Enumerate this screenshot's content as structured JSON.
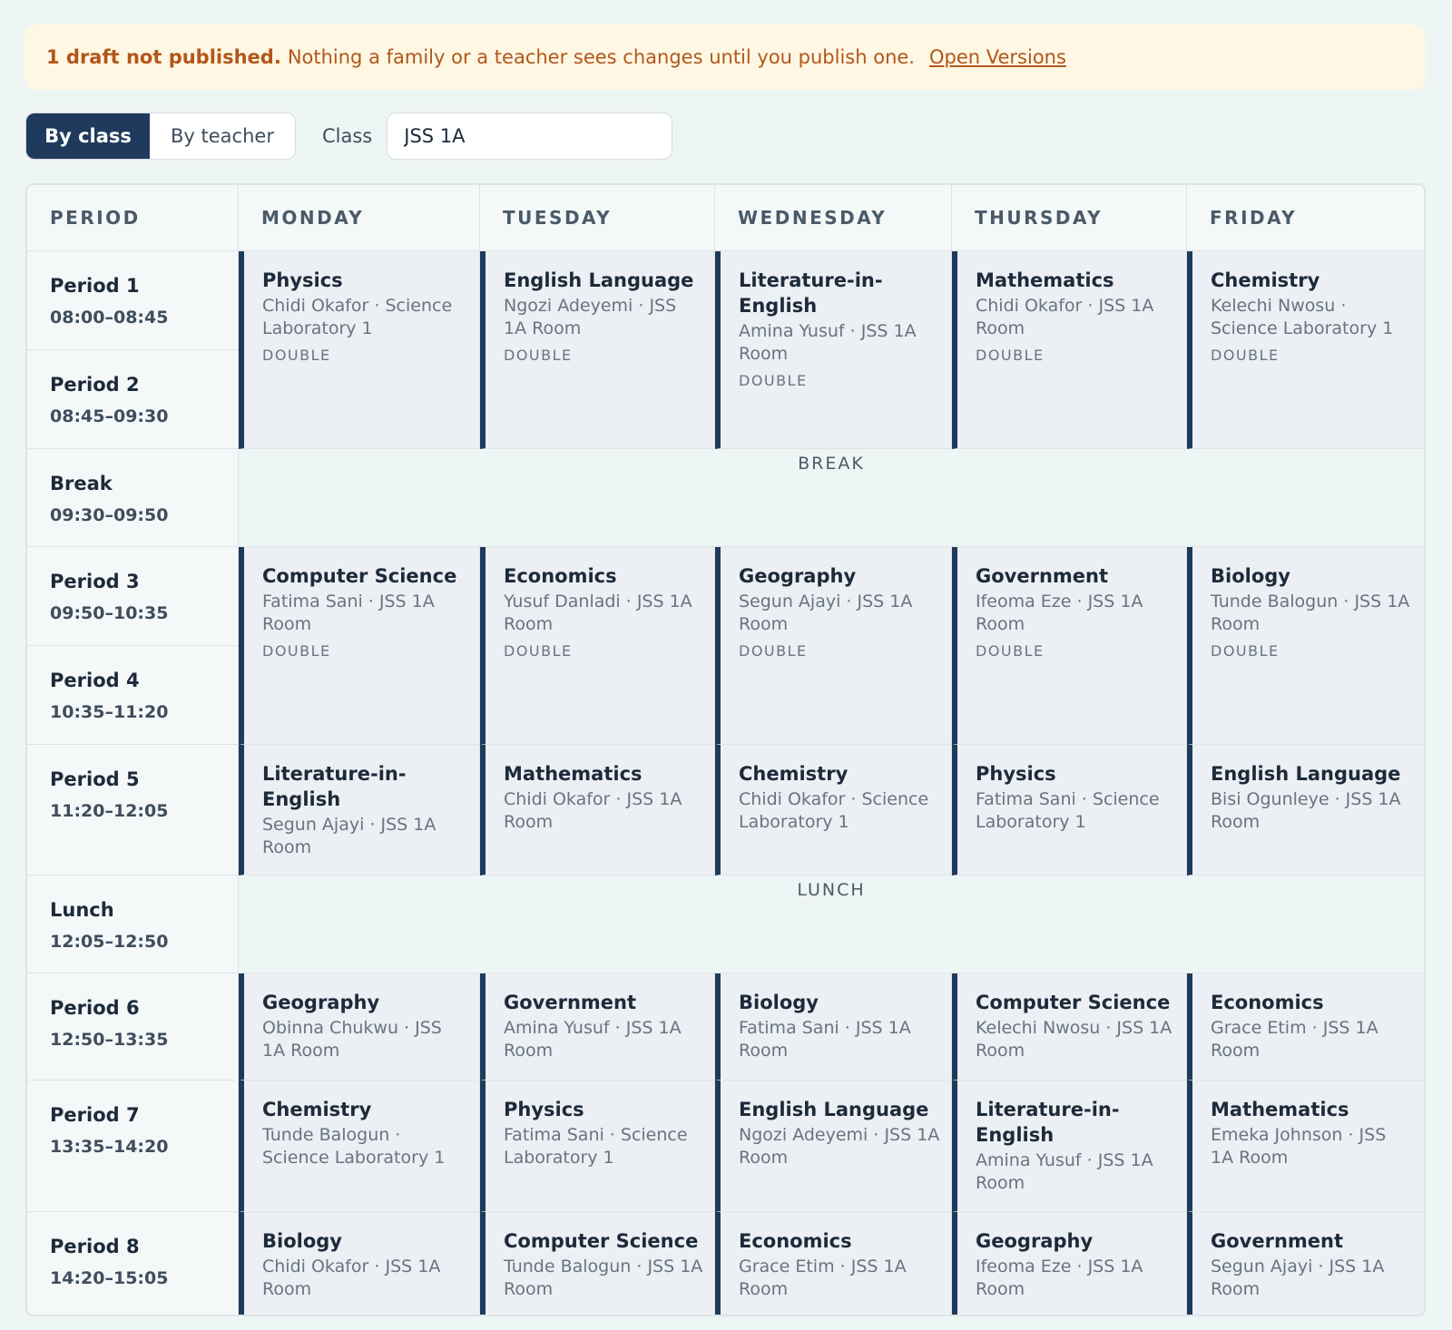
{
  "banner": {
    "strong": "1 draft not published.",
    "message": "Nothing a family or a teacher sees changes until you publish one.",
    "link": "Open Versions"
  },
  "view_toggle": {
    "by_class": "By class",
    "by_teacher": "By teacher",
    "active": "By class"
  },
  "class_filter": {
    "label": "Class",
    "value": "JSS 1A"
  },
  "headers": [
    "PERIOD",
    "MONDAY",
    "TUESDAY",
    "WEDNESDAY",
    "THURSDAY",
    "FRIDAY"
  ],
  "periods": [
    {
      "name": "Period 1",
      "time": "08:00–08:45"
    },
    {
      "name": "Period 2",
      "time": "08:45–09:30"
    },
    {
      "name": "Break",
      "time": "09:30–09:50"
    },
    {
      "name": "Period 3",
      "time": "09:50–10:35"
    },
    {
      "name": "Period 4",
      "time": "10:35–11:20"
    },
    {
      "name": "Period 5",
      "time": "11:20–12:05"
    },
    {
      "name": "Lunch",
      "time": "12:05–12:50"
    },
    {
      "name": "Period 6",
      "time": "12:50–13:35"
    },
    {
      "name": "Period 7",
      "time": "13:35–14:20"
    },
    {
      "name": "Period 8",
      "time": "14:20–15:05"
    }
  ],
  "breaks": {
    "break": "BREAK",
    "lunch": "LUNCH"
  },
  "lessons": {
    "r1": [
      {
        "subject": "Physics",
        "meta": "Chidi Okafor · Science Laboratory 1",
        "tag": "DOUBLE"
      },
      {
        "subject": "English Language",
        "meta": "Ngozi Adeyemi · JSS 1A Room",
        "tag": "DOUBLE"
      },
      {
        "subject": "Literature-in-English",
        "meta": "Amina Yusuf · JSS 1A Room",
        "tag": "DOUBLE"
      },
      {
        "subject": "Mathematics",
        "meta": "Chidi Okafor · JSS 1A Room",
        "tag": "DOUBLE"
      },
      {
        "subject": "Chemistry",
        "meta": "Kelechi Nwosu · Science Laboratory 1",
        "tag": "DOUBLE"
      }
    ],
    "r3": [
      {
        "subject": "Computer Science",
        "meta": "Fatima Sani · JSS 1A Room",
        "tag": "DOUBLE"
      },
      {
        "subject": "Economics",
        "meta": "Yusuf Danladi · JSS 1A Room",
        "tag": "DOUBLE"
      },
      {
        "subject": "Geography",
        "meta": "Segun Ajayi · JSS 1A Room",
        "tag": "DOUBLE"
      },
      {
        "subject": "Government",
        "meta": "Ifeoma Eze · JSS 1A Room",
        "tag": "DOUBLE"
      },
      {
        "subject": "Biology",
        "meta": "Tunde Balogun · JSS 1A Room",
        "tag": "DOUBLE"
      }
    ],
    "r5": [
      {
        "subject": "Literature-in-English",
        "meta": "Segun Ajayi · JSS 1A Room"
      },
      {
        "subject": "Mathematics",
        "meta": "Chidi Okafor · JSS 1A Room"
      },
      {
        "subject": "Chemistry",
        "meta": "Chidi Okafor · Science Laboratory 1"
      },
      {
        "subject": "Physics",
        "meta": "Fatima Sani · Science Laboratory 1"
      },
      {
        "subject": "English Language",
        "meta": "Bisi Ogunleye · JSS 1A Room"
      }
    ],
    "r6": [
      {
        "subject": "Geography",
        "meta": "Obinna Chukwu · JSS 1A Room"
      },
      {
        "subject": "Government",
        "meta": "Amina Yusuf · JSS 1A Room"
      },
      {
        "subject": "Biology",
        "meta": "Fatima Sani · JSS 1A Room"
      },
      {
        "subject": "Computer Science",
        "meta": "Kelechi Nwosu · JSS 1A Room"
      },
      {
        "subject": "Economics",
        "meta": "Grace Etim · JSS 1A Room"
      }
    ],
    "r7": [
      {
        "subject": "Chemistry",
        "meta": "Tunde Balogun · Science Laboratory 1"
      },
      {
        "subject": "Physics",
        "meta": "Fatima Sani · Science Laboratory 1"
      },
      {
        "subject": "English Language",
        "meta": "Ngozi Adeyemi · JSS 1A Room"
      },
      {
        "subject": "Literature-in-English",
        "meta": "Amina Yusuf · JSS 1A Room"
      },
      {
        "subject": "Mathematics",
        "meta": "Emeka Johnson · JSS 1A Room"
      }
    ],
    "r8": [
      {
        "subject": "Biology",
        "meta": "Chidi Okafor · JSS 1A Room"
      },
      {
        "subject": "Computer Science",
        "meta": "Tunde Balogun · JSS 1A Room"
      },
      {
        "subject": "Economics",
        "meta": "Grace Etim · JSS 1A Room"
      },
      {
        "subject": "Geography",
        "meta": "Ifeoma Eze · JSS 1A Room"
      },
      {
        "subject": "Government",
        "meta": "Segun Ajayi · JSS 1A Room"
      }
    ]
  }
}
